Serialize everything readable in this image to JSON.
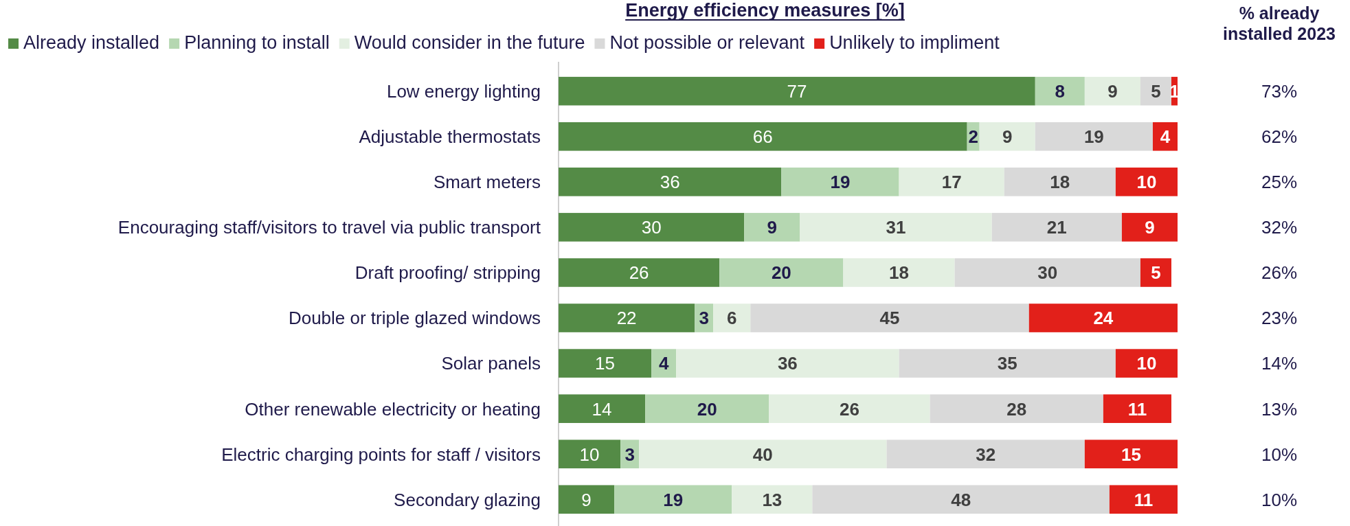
{
  "chart_data": {
    "type": "bar",
    "orientation": "horizontal",
    "stacked": true,
    "title": "Energy efficiency measures [%]",
    "categories": [
      "Low energy lighting",
      "Adjustable thermostats",
      "Smart meters",
      "Encouraging staff/visitors to travel via public transport",
      "Draft proofing/ stripping",
      "Double or triple glazed windows",
      "Solar panels",
      "Other renewable electricity or heating",
      "Electric charging points for staff / visitors",
      "Secondary glazing"
    ],
    "series": [
      {
        "name": "Already installed",
        "color": "#548b46",
        "values": [
          77,
          66,
          36,
          30,
          26,
          22,
          15,
          14,
          10,
          9
        ]
      },
      {
        "name": "Planning to install",
        "color": "#b5d7b1",
        "values": [
          8,
          2,
          19,
          9,
          20,
          3,
          4,
          20,
          3,
          19
        ]
      },
      {
        "name": "Would consider in the future",
        "color": "#e3efe1",
        "values": [
          9,
          9,
          17,
          31,
          18,
          6,
          36,
          26,
          40,
          13
        ]
      },
      {
        "name": "Not possible or relevant",
        "color": "#d9d9d9",
        "values": [
          5,
          19,
          18,
          21,
          30,
          45,
          35,
          28,
          32,
          48
        ]
      },
      {
        "name": "Unlikely to impliment",
        "color": "#e2201a",
        "values": [
          1,
          4,
          10,
          9,
          5,
          24,
          10,
          11,
          15,
          11
        ]
      }
    ],
    "xlim": [
      0,
      100
    ],
    "tick_labels": "y",
    "data_labels": true,
    "legend": "top",
    "annotations": [
      "% already installed 2023",
      "73%",
      "62%",
      "25%",
      "32%",
      "26%",
      "23%",
      "14%",
      "13%",
      "10%",
      "10%"
    ]
  }
}
